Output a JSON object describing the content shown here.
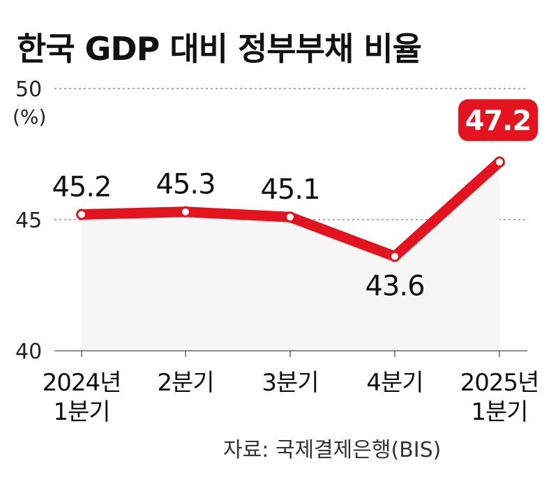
{
  "chart_data": {
    "type": "line",
    "title": "한국 GDP 대비 정부부채 비율",
    "unit_label": "(%)",
    "categories": [
      [
        "2024년",
        "1분기"
      ],
      [
        "2분기"
      ],
      [
        "3분기"
      ],
      [
        "4분기"
      ],
      [
        "2025년",
        "1분기"
      ]
    ],
    "values": [
      45.2,
      45.3,
      45.1,
      43.6,
      47.2
    ],
    "data_labels": [
      "45.2",
      "45.3",
      "45.1",
      "43.6",
      "47.2"
    ],
    "highlight_index": 4,
    "ylim": [
      40,
      50
    ],
    "yticks": [
      40,
      45,
      50
    ],
    "ytick_labels": [
      "40",
      "45",
      "50"
    ],
    "line_color": "#e3141f",
    "highlight_color": "#e3141f",
    "grid": "dashed at 45 and 50"
  },
  "source": "자료: 국제결제은행(BIS)"
}
